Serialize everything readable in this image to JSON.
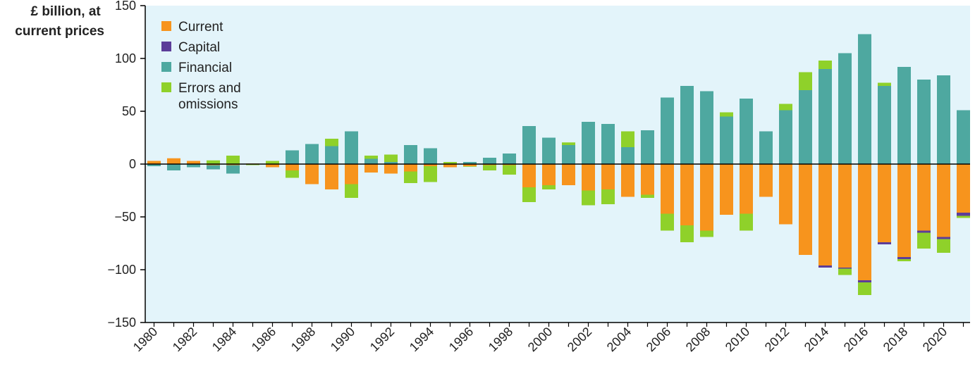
{
  "chart_data": {
    "type": "bar",
    "stacked": true,
    "ylabel_lines": [
      "£ billion, at",
      "current prices"
    ],
    "ylim": [
      -150,
      150
    ],
    "yticks": [
      -150,
      -100,
      -50,
      0,
      50,
      100,
      150
    ],
    "ytick_labels": [
      "−150",
      "−100",
      "−50",
      "0",
      "50",
      "100",
      "150"
    ],
    "x": [
      1980,
      1981,
      1982,
      1983,
      1984,
      1985,
      1986,
      1987,
      1988,
      1989,
      1990,
      1991,
      1992,
      1993,
      1994,
      1995,
      1996,
      1997,
      1998,
      1999,
      2000,
      2001,
      2002,
      2003,
      2004,
      2005,
      2006,
      2007,
      2008,
      2009,
      2010,
      2011,
      2012,
      2013,
      2014,
      2015,
      2016,
      2017,
      2018,
      2019,
      2020,
      2021
    ],
    "xtick_labels": [
      "1980",
      "1982",
      "1984",
      "1986",
      "1988",
      "1990",
      "1992",
      "1994",
      "1996",
      "1998",
      "2000",
      "2002",
      "2004",
      "2006",
      "2008",
      "2010",
      "2012",
      "2014",
      "2016",
      "2018",
      "2020"
    ],
    "grid": false,
    "legend_position": "top-left",
    "series": [
      {
        "name": "Current",
        "color": "#f7941d",
        "values": [
          3,
          5.5,
          3,
          -1,
          -1,
          0.5,
          -3,
          -6,
          -19,
          -24,
          -19,
          -8,
          -9,
          -7,
          -2,
          -3,
          -2,
          -1,
          -1,
          -22,
          -20,
          -20,
          -25,
          -24,
          -31,
          -29,
          -47,
          -58,
          -63,
          -48,
          -47,
          -31,
          -57,
          -86,
          -96,
          -98,
          -110,
          -74,
          -88,
          -63,
          -69,
          -46
        ]
      },
      {
        "name": "Capital",
        "color": "#5c3d99",
        "values": [
          0,
          0,
          0,
          0,
          0,
          0,
          0,
          0,
          0,
          0,
          0,
          0,
          0,
          0,
          0,
          0,
          0,
          0,
          0,
          0,
          0,
          0,
          0,
          0,
          0,
          0,
          0,
          0,
          0,
          0,
          0,
          0,
          0,
          0,
          -2,
          -1,
          -2,
          -2,
          -2,
          -2,
          -2,
          -3
        ]
      },
      {
        "name": "Financial",
        "color": "#4ea8a0",
        "values": [
          -2,
          -6,
          -3,
          -4,
          -8,
          0,
          0,
          13,
          19,
          17,
          31,
          5,
          2,
          18,
          15,
          0,
          2,
          6,
          10,
          36,
          25,
          18,
          40,
          38,
          16,
          32,
          63,
          74,
          69,
          45,
          62,
          31,
          51,
          70,
          90,
          105,
          123,
          74,
          92,
          80,
          84,
          51
        ]
      },
      {
        "name": "Errors and omissions",
        "color": "#8fd12a",
        "values": [
          0,
          0,
          0,
          3.5,
          8,
          -1,
          3,
          -7,
          0,
          7,
          -13,
          3,
          7,
          -11,
          -15,
          2,
          -0.5,
          -5,
          -9,
          -14,
          -4,
          2.5,
          -14,
          -14,
          15,
          -3,
          -16,
          -16,
          -6,
          4,
          -16,
          0,
          6,
          17,
          8,
          -6,
          -12,
          3,
          -2,
          -15,
          -13,
          -2
        ]
      }
    ],
    "legend_labels": [
      [
        "Current"
      ],
      [
        "Capital"
      ],
      [
        "Financial"
      ],
      [
        "Errors and",
        "omissions"
      ]
    ]
  }
}
